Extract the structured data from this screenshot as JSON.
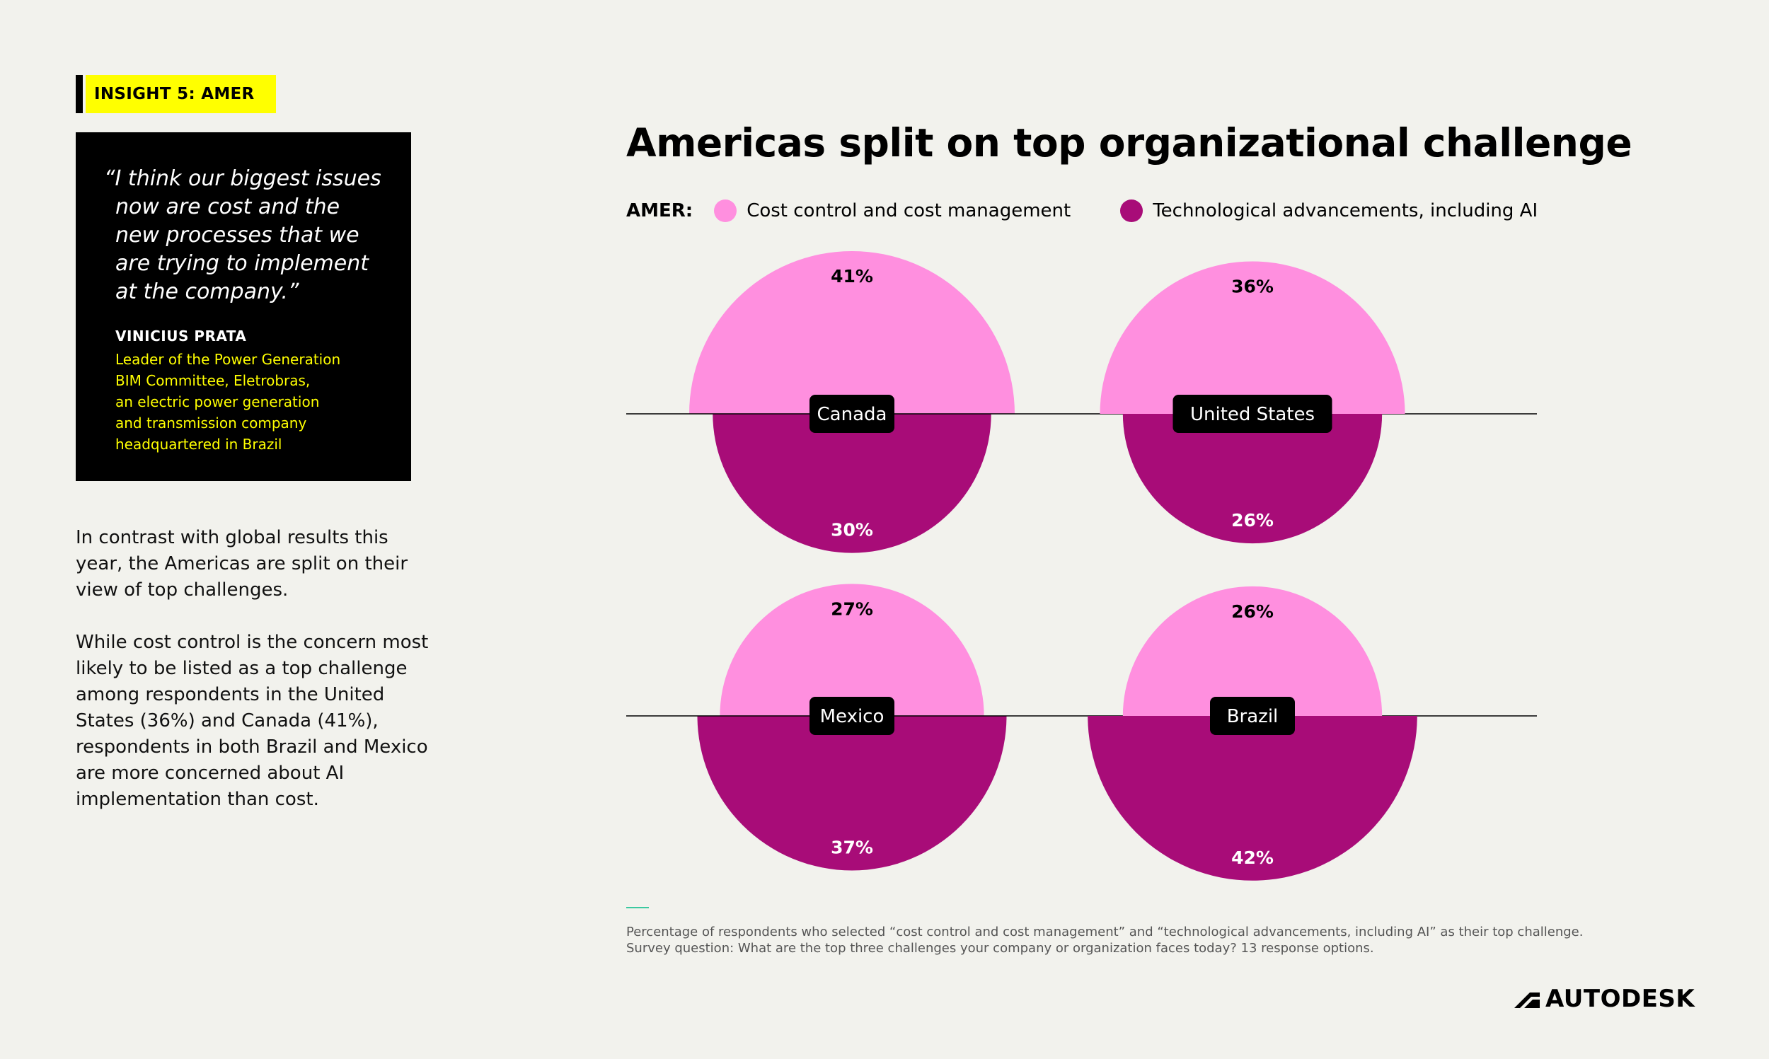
{
  "tag": "INSIGHT 5: AMER",
  "quote": {
    "text": "“I think our biggest issues now are cost and the new processes that we are trying to implement at the company.”",
    "name": "VINICIUS PRATA",
    "role": "Leader of the Power Generation\nBIM Committee, Eletrobras,\nan electric power generation\nand transmission company\nheadquartered in Brazil"
  },
  "body": {
    "p1": "In contrast with global results this year, the Americas are split on their view of top challenges.",
    "p2": "While cost control is the concern most likely to be listed as a top challenge among respondents in the United States (36%) and Canada (41%), respondents in both Brazil and Mexico are more concerned about AI implementation than cost."
  },
  "legend": {
    "label": "AMER:",
    "cost": "Cost control and cost management",
    "tech": "Technological advancements, including AI"
  },
  "colors": {
    "cost": "#ff8fdf",
    "tech": "#a80c78",
    "tag": "#ffff00"
  },
  "chart_data": {
    "type": "semicircle",
    "title": "Americas split on top organizational challenge",
    "series": [
      "Cost control and cost management",
      "Technological advancements, including AI"
    ],
    "countries": [
      {
        "name": "Canada",
        "cost": 41,
        "tech": 30,
        "cost_label": "41%",
        "tech_label": "30%"
      },
      {
        "name": "United States",
        "cost": 36,
        "tech": 26,
        "cost_label": "36%",
        "tech_label": "26%"
      },
      {
        "name": "Mexico",
        "cost": 27,
        "tech": 37,
        "cost_label": "27%",
        "tech_label": "37%"
      },
      {
        "name": "Brazil",
        "cost": 26,
        "tech": 42,
        "cost_label": "26%",
        "tech_label": "42%"
      }
    ]
  },
  "footnote": {
    "line1": "Percentage of respondents who selected “cost control and cost management” and “technological advancements, including AI” as their top challenge.",
    "line2": "Survey question: What are the top three challenges your company or organization faces today? 13 response options."
  },
  "brand": "AUTODESK"
}
